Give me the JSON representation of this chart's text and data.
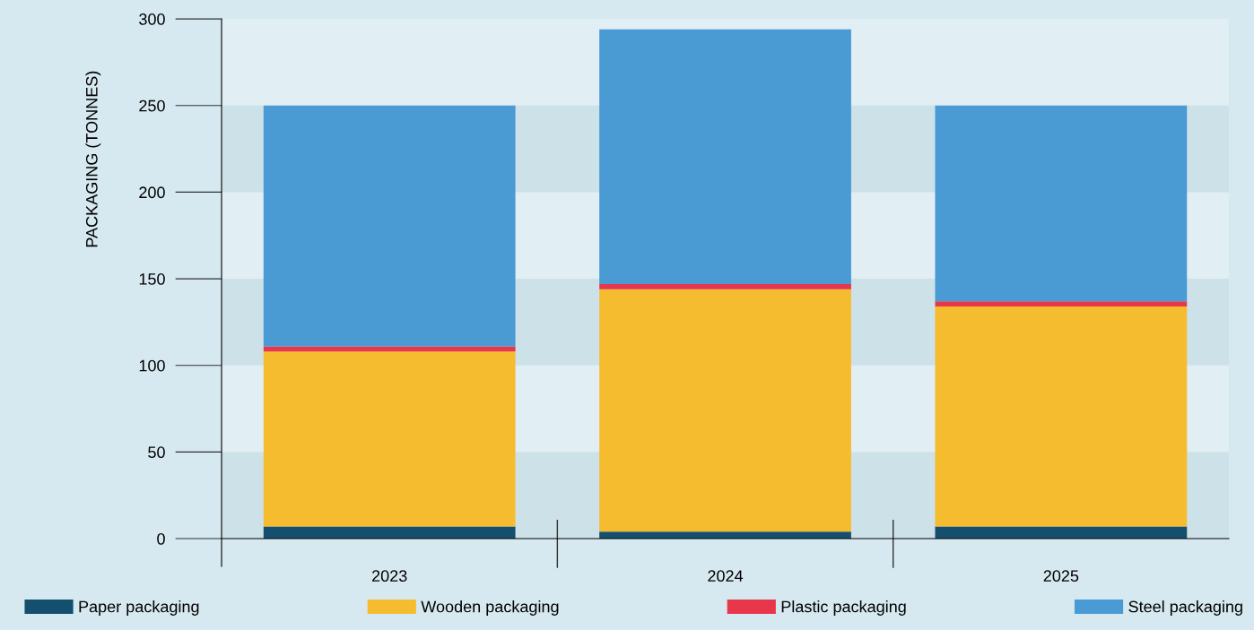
{
  "chart_data": {
    "type": "bar",
    "stacked": true,
    "ylabel": "PACKAGING (TONNES)",
    "categories": [
      "2023",
      "2024",
      "2025"
    ],
    "series": [
      {
        "name": "Paper packaging",
        "color": "#154f6e",
        "values": [
          7,
          4,
          7
        ]
      },
      {
        "name": "Wooden packaging",
        "color": "#f6bc2f",
        "values": [
          101,
          140,
          127
        ]
      },
      {
        "name": "Plastic packaging",
        "color": "#e8364b",
        "values": [
          3,
          3,
          3
        ]
      },
      {
        "name": "Steel packaging",
        "color": "#4a9ad4",
        "values": [
          139,
          147,
          113
        ]
      }
    ],
    "bands": [
      {
        "axis": "y",
        "from": 0,
        "to": 50,
        "color": "#cde1e8"
      },
      {
        "axis": "y",
        "from": 100,
        "to": 150,
        "color": "#cde1e8"
      },
      {
        "axis": "y",
        "from": 200,
        "to": 250,
        "color": "#cde1e8"
      }
    ],
    "ylim": [
      0,
      300
    ],
    "yticks": [
      0,
      50,
      100,
      150,
      200,
      250,
      300
    ],
    "legend": "bottom"
  }
}
